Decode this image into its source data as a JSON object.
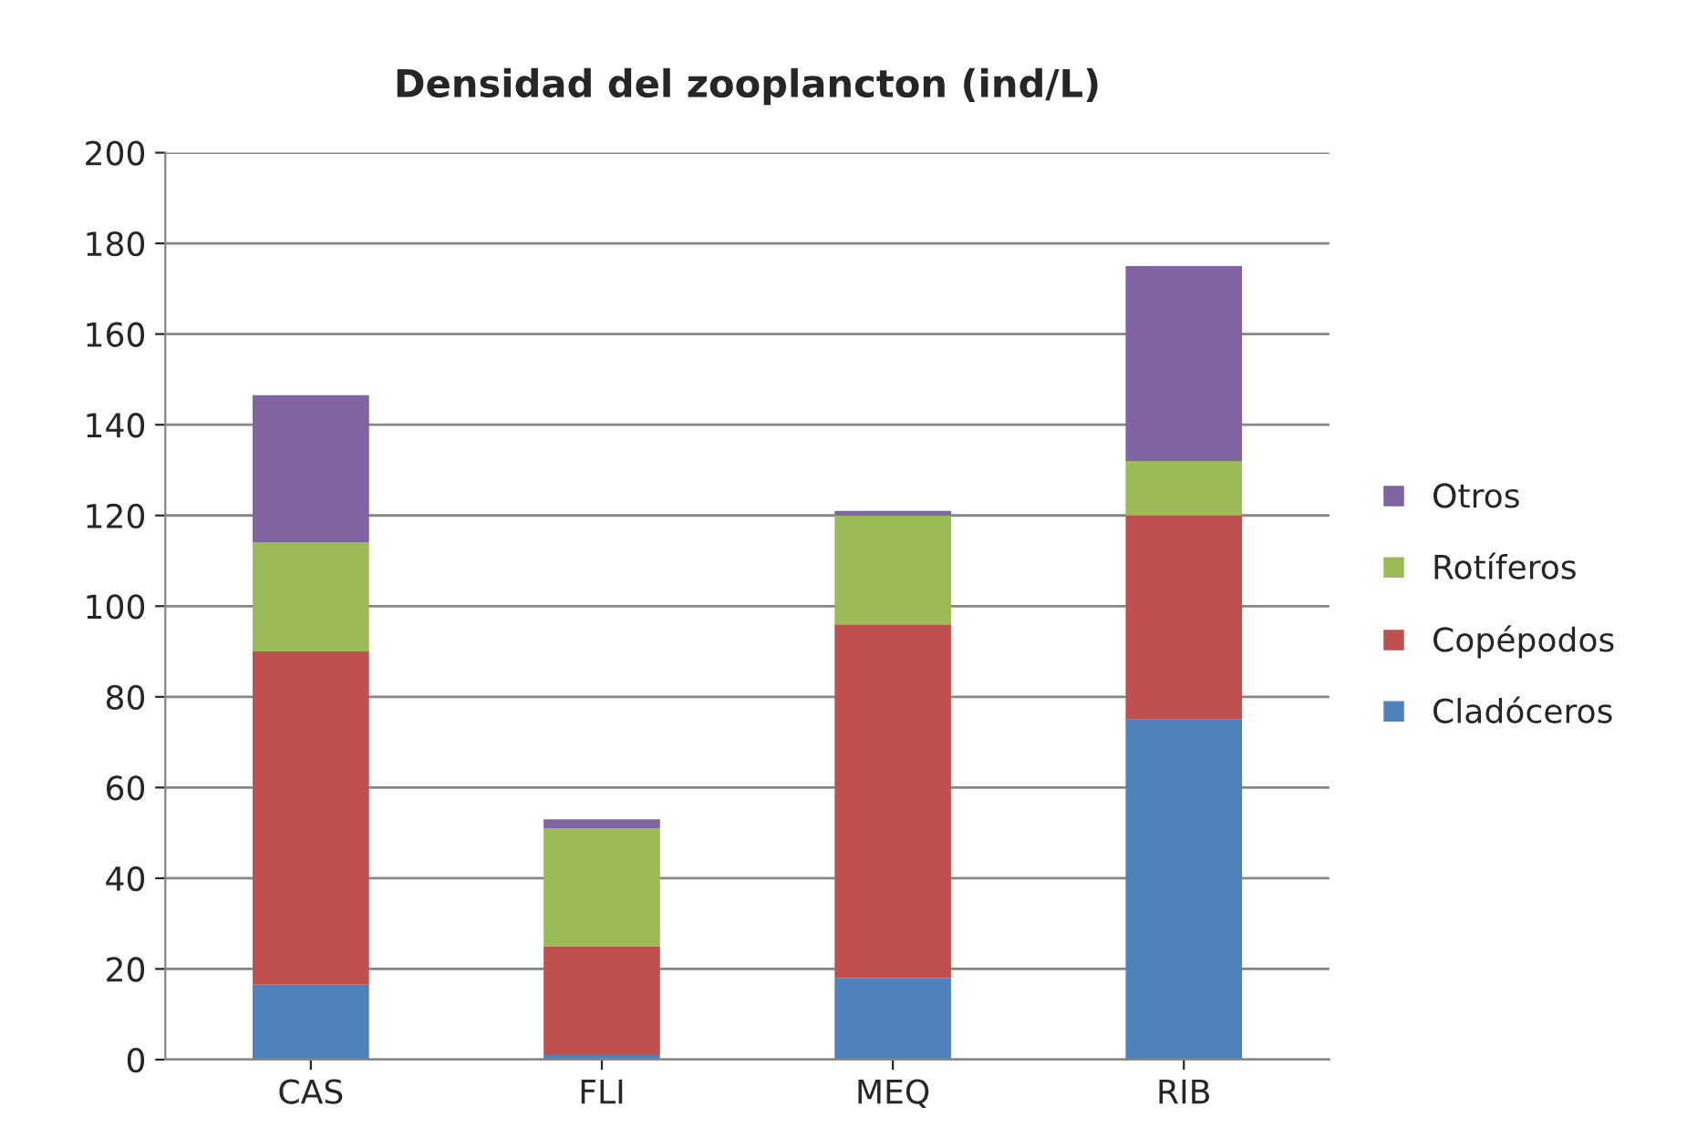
{
  "chart_data": {
    "type": "bar",
    "title": "Densidad del zooplancton (ind/L)",
    "categories": [
      "CAS",
      "FLI",
      "MEQ",
      "RIB"
    ],
    "stacked": true,
    "ylim": [
      0,
      200
    ],
    "yticks": [
      0,
      20,
      40,
      60,
      80,
      100,
      120,
      140,
      160,
      180,
      200
    ],
    "grid": "y",
    "legend": "right",
    "series": [
      {
        "name": "Cladóceros",
        "color": "#4f81bd",
        "values": [
          16.5,
          1,
          18,
          75
        ]
      },
      {
        "name": "Copépodos",
        "color": "#c0504d",
        "values": [
          73.5,
          24,
          78,
          45
        ]
      },
      {
        "name": "Rotíferos",
        "color": "#9bbb59",
        "values": [
          24,
          26,
          24,
          12
        ]
      },
      {
        "name": "Otros",
        "color": "#8064a2",
        "values": [
          32.5,
          2,
          1,
          43
        ]
      }
    ]
  }
}
